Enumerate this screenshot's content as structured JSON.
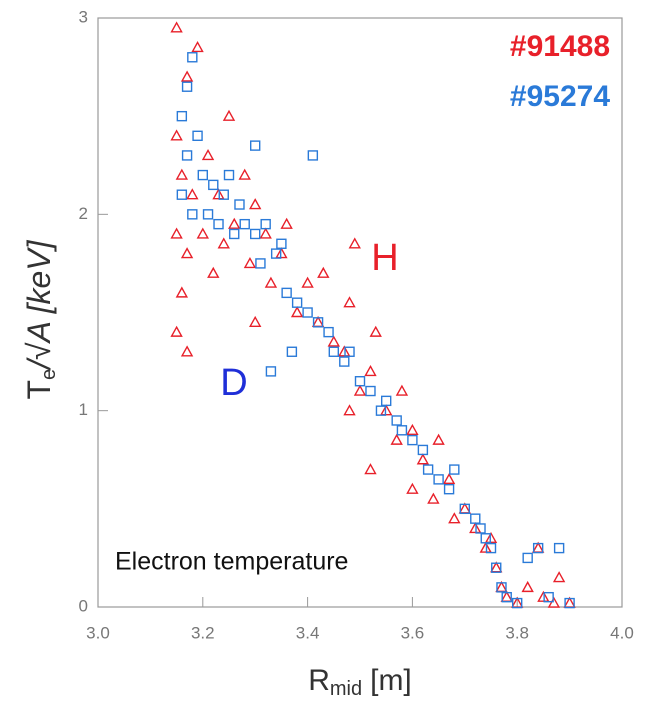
{
  "chart_data": {
    "type": "scatter",
    "x_label": "R",
    "x_label_sub": "mid",
    "x_label_unit": "[m]",
    "y_label": "T",
    "y_label_sub": "e",
    "y_label_unit": "/√A  [keV]",
    "annotations": [
      {
        "text": "H",
        "color": "#e8202a"
      },
      {
        "text": "D",
        "color": "#1f2fd8"
      },
      {
        "text": "Electron temperature",
        "color": "#111111"
      }
    ],
    "xlim": [
      3.0,
      4.0
    ],
    "xticks": [
      {
        "value": 3.0,
        "label": "3.0"
      },
      3.2,
      3.4,
      3.6,
      3.8,
      {
        "value": 4.0,
        "label": "4.0"
      }
    ],
    "ylim": [
      0,
      3
    ],
    "yticks": [
      0,
      1,
      2,
      3
    ],
    "grid": false,
    "legend": "top-right",
    "series": [
      {
        "name": "#91488",
        "color": "#e8202a",
        "marker": "triangle",
        "x": [
          3.15,
          3.15,
          3.15,
          3.15,
          3.16,
          3.16,
          3.17,
          3.17,
          3.18,
          3.19,
          3.2,
          3.21,
          3.22,
          3.23,
          3.24,
          3.25,
          3.26,
          3.28,
          3.29,
          3.3,
          3.32,
          3.33,
          3.35,
          3.36,
          3.38,
          3.4,
          3.42,
          3.43,
          3.45,
          3.47,
          3.48,
          3.49,
          3.5,
          3.52,
          3.53,
          3.55,
          3.57,
          3.58,
          3.6,
          3.6,
          3.62,
          3.64,
          3.65,
          3.67,
          3.68,
          3.7,
          3.72,
          3.74,
          3.75,
          3.76,
          3.77,
          3.78,
          3.8,
          3.82,
          3.84,
          3.85,
          3.87,
          3.88,
          3.9,
          3.52,
          3.48,
          3.3,
          3.17
        ],
        "values": [
          2.95,
          2.4,
          1.9,
          1.4,
          1.6,
          2.2,
          2.7,
          1.8,
          2.1,
          2.85,
          1.9,
          2.3,
          1.7,
          2.1,
          1.85,
          2.5,
          1.95,
          2.2,
          1.75,
          2.05,
          1.9,
          1.65,
          1.8,
          1.95,
          1.5,
          1.65,
          1.45,
          1.7,
          1.35,
          1.3,
          1.55,
          1.85,
          1.1,
          1.2,
          1.4,
          1.0,
          0.85,
          1.1,
          0.9,
          0.6,
          0.75,
          0.55,
          0.85,
          0.65,
          0.45,
          0.5,
          0.4,
          0.3,
          0.35,
          0.2,
          0.1,
          0.05,
          0.02,
          0.1,
          0.3,
          0.05,
          0.02,
          0.15,
          0.02,
          0.7,
          1.0,
          1.45,
          1.3
        ]
      },
      {
        "name": "#95274",
        "color": "#2a7ad8",
        "marker": "square",
        "x": [
          3.16,
          3.16,
          3.17,
          3.17,
          3.18,
          3.18,
          3.19,
          3.2,
          3.21,
          3.22,
          3.23,
          3.24,
          3.25,
          3.26,
          3.27,
          3.28,
          3.3,
          3.31,
          3.32,
          3.34,
          3.35,
          3.36,
          3.37,
          3.38,
          3.4,
          3.41,
          3.42,
          3.44,
          3.45,
          3.47,
          3.48,
          3.5,
          3.52,
          3.54,
          3.55,
          3.57,
          3.58,
          3.6,
          3.62,
          3.63,
          3.65,
          3.67,
          3.68,
          3.7,
          3.72,
          3.73,
          3.74,
          3.75,
          3.76,
          3.77,
          3.78,
          3.8,
          3.82,
          3.84,
          3.86,
          3.88,
          3.9,
          3.33,
          3.3
        ],
        "values": [
          2.5,
          2.1,
          2.3,
          2.65,
          2.8,
          2.0,
          2.4,
          2.2,
          2.0,
          2.15,
          1.95,
          2.1,
          2.2,
          1.9,
          2.05,
          1.95,
          1.9,
          1.75,
          1.95,
          1.8,
          1.85,
          1.6,
          1.3,
          1.55,
          1.5,
          2.3,
          1.45,
          1.4,
          1.3,
          1.25,
          1.3,
          1.15,
          1.1,
          1.0,
          1.05,
          0.95,
          0.9,
          0.85,
          0.8,
          0.7,
          0.65,
          0.6,
          0.7,
          0.5,
          0.45,
          0.4,
          0.35,
          0.3,
          0.2,
          0.1,
          0.05,
          0.02,
          0.25,
          0.3,
          0.05,
          0.3,
          0.02,
          1.2,
          2.35
        ]
      }
    ]
  }
}
